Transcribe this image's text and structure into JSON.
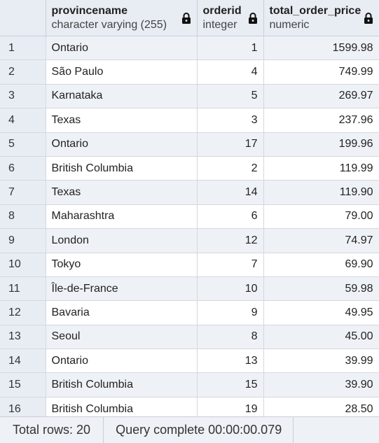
{
  "columns": [
    {
      "name": "provincename",
      "type": "character varying (255)"
    },
    {
      "name": "orderid",
      "type": "integer"
    },
    {
      "name": "total_order_price",
      "type": "numeric"
    }
  ],
  "rows": [
    {
      "idx": "1",
      "provincename": "Ontario",
      "orderid": "1",
      "total_order_price": "1599.98"
    },
    {
      "idx": "2",
      "provincename": "São Paulo",
      "orderid": "4",
      "total_order_price": "749.99"
    },
    {
      "idx": "3",
      "provincename": "Karnataka",
      "orderid": "5",
      "total_order_price": "269.97"
    },
    {
      "idx": "4",
      "provincename": "Texas",
      "orderid": "3",
      "total_order_price": "237.96"
    },
    {
      "idx": "5",
      "provincename": "Ontario",
      "orderid": "17",
      "total_order_price": "199.96"
    },
    {
      "idx": "6",
      "provincename": "British Columbia",
      "orderid": "2",
      "total_order_price": "119.99"
    },
    {
      "idx": "7",
      "provincename": "Texas",
      "orderid": "14",
      "total_order_price": "119.90"
    },
    {
      "idx": "8",
      "provincename": "Maharashtra",
      "orderid": "6",
      "total_order_price": "79.00"
    },
    {
      "idx": "9",
      "provincename": "London",
      "orderid": "12",
      "total_order_price": "74.97"
    },
    {
      "idx": "10",
      "provincename": "Tokyo",
      "orderid": "7",
      "total_order_price": "69.90"
    },
    {
      "idx": "11",
      "provincename": "Île-de-France",
      "orderid": "10",
      "total_order_price": "59.98"
    },
    {
      "idx": "12",
      "provincename": "Bavaria",
      "orderid": "9",
      "total_order_price": "49.95"
    },
    {
      "idx": "13",
      "provincename": "Seoul",
      "orderid": "8",
      "total_order_price": "45.00"
    },
    {
      "idx": "14",
      "provincename": "Ontario",
      "orderid": "13",
      "total_order_price": "39.99"
    },
    {
      "idx": "15",
      "provincename": "British Columbia",
      "orderid": "15",
      "total_order_price": "39.90"
    },
    {
      "idx": "16",
      "provincename": "British Columbia",
      "orderid": "19",
      "total_order_price": "28.50"
    }
  ],
  "status": {
    "total_rows": "Total rows: 20",
    "query": "Query complete 00:00:00.079"
  },
  "icons": {
    "column_lock": "lock-icon"
  }
}
